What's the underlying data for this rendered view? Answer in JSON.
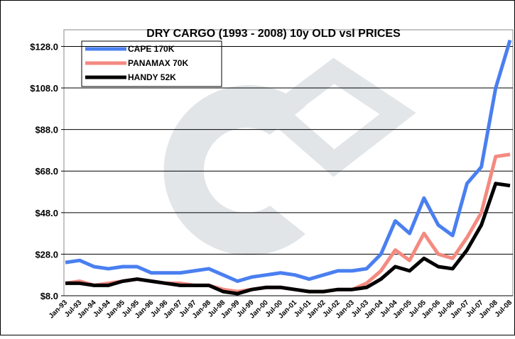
{
  "chart_data": {
    "type": "line",
    "title": "DRY CARGO (1993 - 2008) 10y OLD vsl PRICES",
    "categories": [
      "Jan-93",
      "Jul-93",
      "Jan-94",
      "Jul-94",
      "Jan-95",
      "Jul-95",
      "Jan-96",
      "Jul-96",
      "Jan-97",
      "Jul-97",
      "Jan-98",
      "Jul-98",
      "Jan-99",
      "Jul-99",
      "Jan-00",
      "Jul-00",
      "Jan-01",
      "Jul-01",
      "Jan-02",
      "Jul-02",
      "Jan-03",
      "Jul-03",
      "Jan-04",
      "Jul-04",
      "Jan-05",
      "Jul-05",
      "Jan-06",
      "Jul-06",
      "Jan-07",
      "Jul-07",
      "Jan-08",
      "Jul-08"
    ],
    "series": [
      {
        "name": "CAPE 170K",
        "color": "#4a7ff0",
        "values": [
          24,
          25,
          22,
          21,
          22,
          22,
          19,
          19,
          19,
          20,
          21,
          18,
          15,
          17,
          18,
          19,
          18,
          16,
          18,
          20,
          20,
          21,
          28,
          44,
          38,
          55,
          42,
          37,
          62,
          70,
          108,
          131
        ]
      },
      {
        "name": "PANAMAX 70K",
        "color": "#f48a80",
        "values": [
          14,
          15,
          13,
          14,
          15,
          16,
          15,
          14,
          14,
          13,
          13,
          11,
          10,
          11,
          12,
          12,
          11,
          10,
          10,
          11,
          11,
          14,
          20,
          30,
          25,
          38,
          28,
          26,
          36,
          48,
          75,
          76
        ]
      },
      {
        "name": "HANDY 52K",
        "color": "#000000",
        "values": [
          14,
          14,
          13,
          13,
          15,
          16,
          15,
          14,
          13,
          13,
          13,
          10,
          9,
          11,
          12,
          12,
          11,
          10,
          10,
          11,
          11,
          12,
          16,
          22,
          20,
          26,
          22,
          21,
          30,
          42,
          62,
          61
        ]
      }
    ],
    "ylim": [
      8,
      136
    ],
    "yticks": [
      {
        "value": 8,
        "label": "$8.0"
      },
      {
        "value": 28,
        "label": "$28.0"
      },
      {
        "value": 48,
        "label": "$48.0"
      },
      {
        "value": 68,
        "label": "$68.0"
      },
      {
        "value": 88,
        "label": "$88.0"
      },
      {
        "value": 108,
        "label": "$108.0"
      },
      {
        "value": 128,
        "label": "$128.0"
      }
    ],
    "grid": true
  }
}
